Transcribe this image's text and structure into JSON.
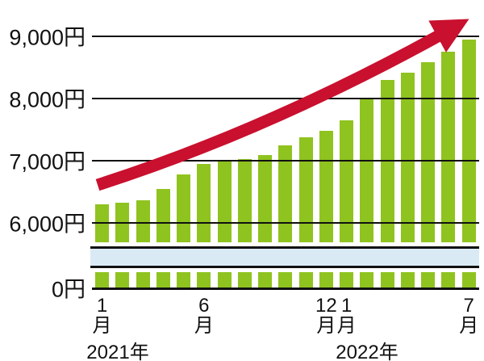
{
  "chart_data": {
    "type": "bar",
    "unit": "円",
    "categories": [
      "2021年1月",
      "2021年2月",
      "2021年3月",
      "2021年4月",
      "2021年5月",
      "2021年6月",
      "2021年7月",
      "2021年8月",
      "2021年9月",
      "2021年10月",
      "2021年11月",
      "2021年12月",
      "2022年1月",
      "2022年2月",
      "2022年3月",
      "2022年4月",
      "2022年5月",
      "2022年6月",
      "2022年7月"
    ],
    "values": [
      6300,
      6330,
      6360,
      6550,
      6780,
      6950,
      7010,
      7030,
      7090,
      7250,
      7380,
      7480,
      7650,
      8000,
      8300,
      8420,
      8580,
      8750,
      8950
    ],
    "title": "",
    "xlabel": "",
    "ylabel": "",
    "ylim": [
      0,
      9500
    ],
    "grid": true,
    "legend": "none",
    "axis_break": {
      "present": true,
      "hidden_range": [
        500,
        6000
      ]
    },
    "bar_color": "#8fc31f",
    "band_color": "#daeaf5",
    "line_color": "#111111",
    "trend_arrow_color": "#c9102e",
    "yticks": [
      {
        "value": 9000,
        "label": "9,000円"
      },
      {
        "value": 8000,
        "label": "8,000円"
      },
      {
        "value": 7000,
        "label": "7,000円"
      },
      {
        "value": 6000,
        "label": "6,000円"
      },
      {
        "value": 0,
        "label": "0円"
      }
    ],
    "xticks": [
      {
        "index": 0,
        "number": "1",
        "suffix": "月"
      },
      {
        "index": 5,
        "number": "6",
        "suffix": "月"
      },
      {
        "index": 11,
        "number": "12",
        "suffix": "月"
      },
      {
        "index": 12,
        "number": "1",
        "suffix": "月"
      },
      {
        "index": 18,
        "number": "7",
        "suffix": "月"
      }
    ],
    "year_labels": [
      {
        "text": "2021年"
      },
      {
        "text": "2022年"
      }
    ],
    "annotations": [
      {
        "type": "trend-arrow",
        "direction": "up-right",
        "color": "#c9102e"
      }
    ]
  }
}
